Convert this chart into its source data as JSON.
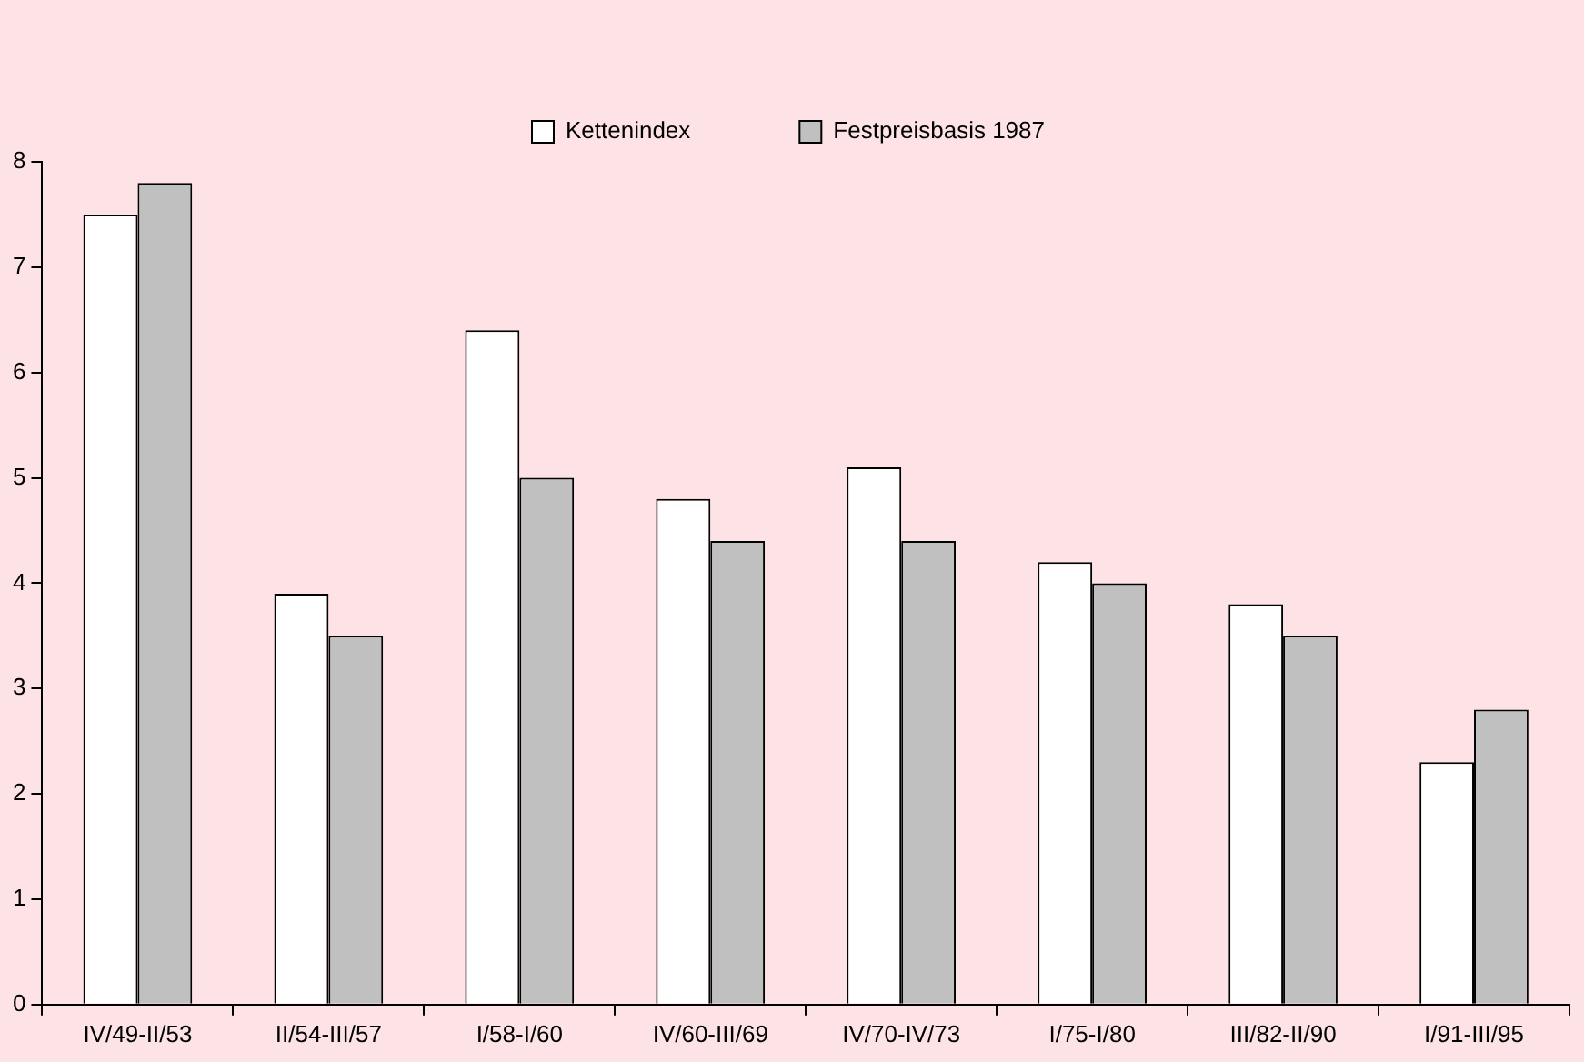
{
  "chart_data": {
    "type": "bar",
    "categories": [
      "IV/49-II/53",
      "II/54-III/57",
      "I/58-I/60",
      "IV/60-III/69",
      "IV/70-IV/73",
      "I/75-I/80",
      "III/82-II/90",
      "I/91-III/95"
    ],
    "series": [
      {
        "name": "Kettenindex",
        "color": "#ffffff",
        "values": [
          7.5,
          3.9,
          6.4,
          4.8,
          5.1,
          4.2,
          3.8,
          2.3
        ]
      },
      {
        "name": "Festpreisbasis 1987",
        "color": "#c0c0c0",
        "values": [
          7.8,
          3.5,
          5.0,
          4.4,
          4.4,
          4.0,
          3.5,
          2.8
        ]
      }
    ],
    "ylim": [
      0,
      8
    ],
    "yticks": [
      0,
      1,
      2,
      3,
      4,
      5,
      6,
      7,
      8
    ],
    "grid": false,
    "legend": "top"
  }
}
